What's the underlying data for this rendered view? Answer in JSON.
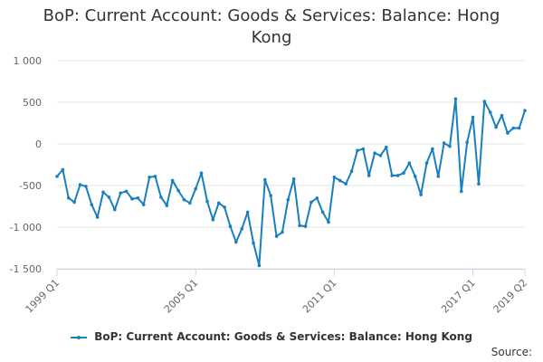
{
  "chart_data": {
    "type": "line",
    "title": "BoP: Current Account: Goods & Services: Balance: Hong Kong",
    "xlabel": "",
    "ylabel": "",
    "ylim": [
      -1500,
      1000
    ],
    "y_ticks": [
      "1 000",
      "500",
      "0",
      "-500",
      "-1 000",
      "-1 500"
    ],
    "y_tick_values": [
      1000,
      500,
      0,
      -500,
      -1000,
      -1500
    ],
    "x_ticks": [
      "1999 Q1",
      "2005 Q1",
      "2011 Q1",
      "2017 Q1",
      "2019 Q2"
    ],
    "x_tick_indices": [
      0,
      24,
      48,
      72,
      81
    ],
    "grid": "horizontal",
    "legend_position": "bottom-center",
    "color": "#1a7fbd",
    "x": [
      "1999 Q1",
      "1999 Q2",
      "1999 Q3",
      "1999 Q4",
      "2000 Q1",
      "2000 Q2",
      "2000 Q3",
      "2000 Q4",
      "2001 Q1",
      "2001 Q2",
      "2001 Q3",
      "2001 Q4",
      "2002 Q1",
      "2002 Q2",
      "2002 Q3",
      "2002 Q4",
      "2003 Q1",
      "2003 Q2",
      "2003 Q3",
      "2003 Q4",
      "2004 Q1",
      "2004 Q2",
      "2004 Q3",
      "2004 Q4",
      "2005 Q1",
      "2005 Q2",
      "2005 Q3",
      "2005 Q4",
      "2006 Q1",
      "2006 Q2",
      "2006 Q3",
      "2006 Q4",
      "2007 Q1",
      "2007 Q2",
      "2007 Q3",
      "2007 Q4",
      "2008 Q1",
      "2008 Q2",
      "2008 Q3",
      "2008 Q4",
      "2009 Q1",
      "2009 Q2",
      "2009 Q3",
      "2009 Q4",
      "2010 Q1",
      "2010 Q2",
      "2010 Q3",
      "2010 Q4",
      "2011 Q1",
      "2011 Q2",
      "2011 Q3",
      "2011 Q4",
      "2012 Q1",
      "2012 Q2",
      "2012 Q3",
      "2012 Q4",
      "2013 Q1",
      "2013 Q2",
      "2013 Q3",
      "2013 Q4",
      "2014 Q1",
      "2014 Q2",
      "2014 Q3",
      "2014 Q4",
      "2015 Q1",
      "2015 Q2",
      "2015 Q3",
      "2015 Q4",
      "2016 Q1",
      "2016 Q2",
      "2016 Q3",
      "2016 Q4",
      "2017 Q1",
      "2017 Q2",
      "2017 Q3",
      "2017 Q4",
      "2018 Q1",
      "2018 Q2",
      "2018 Q3",
      "2018 Q4",
      "2019 Q1",
      "2019 Q2"
    ],
    "series": [
      {
        "name": "BoP: Current Account: Goods & Services: Balance: Hong Kong",
        "values": [
          -390,
          -310,
          -650,
          -700,
          -490,
          -510,
          -730,
          -880,
          -580,
          -640,
          -790,
          -590,
          -570,
          -660,
          -650,
          -730,
          -400,
          -390,
          -640,
          -740,
          -440,
          -560,
          -670,
          -710,
          -540,
          -350,
          -690,
          -910,
          -710,
          -760,
          -990,
          -1180,
          -1020,
          -820,
          -1190,
          -1460,
          -430,
          -620,
          -1110,
          -1060,
          -670,
          -420,
          -980,
          -990,
          -700,
          -650,
          -820,
          -940,
          -400,
          -440,
          -480,
          -330,
          -80,
          -60,
          -380,
          -110,
          -140,
          -40,
          -380,
          -380,
          -350,
          -230,
          -390,
          -610,
          -230,
          -60,
          -390,
          10,
          -30,
          540,
          -570,
          20,
          320,
          -480,
          510,
          380,
          200,
          340,
          130,
          190,
          190,
          400
        ]
      }
    ]
  },
  "legend": {
    "label": "BoP: Current Account: Goods & Services: Balance: Hong Kong"
  },
  "credits": "Source:"
}
